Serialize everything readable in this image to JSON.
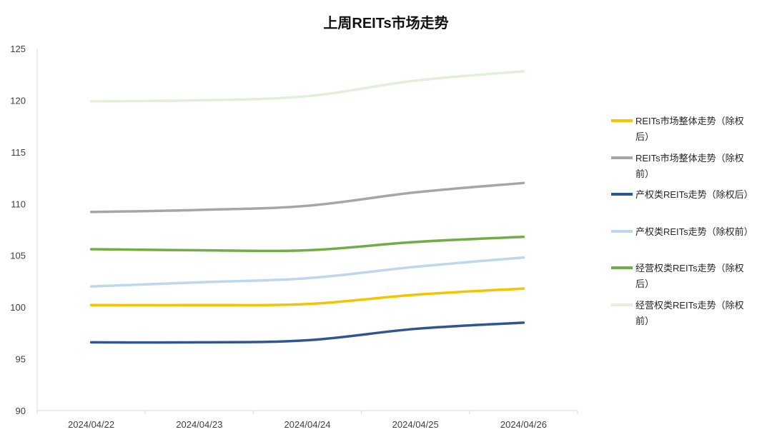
{
  "chart_data": {
    "type": "line",
    "title": "上周REITs市场走势",
    "categories": [
      "2024/04/22",
      "2024/04/23",
      "2024/04/24",
      "2024/04/25",
      "2024/04/26"
    ],
    "ylim": [
      90,
      125
    ],
    "yticks": [
      90,
      95,
      100,
      105,
      110,
      115,
      120,
      125
    ],
    "grid": false,
    "legend_position": "right",
    "series": [
      {
        "name": "REITs市场整体走势（除权\n后）",
        "color": "#F5C400",
        "values": [
          100.2,
          100.2,
          100.3,
          101.2,
          101.8
        ]
      },
      {
        "name": " REITs市场整体走势（除权\n前）",
        "color": "#A6A6A6",
        "values": [
          109.2,
          109.4,
          109.8,
          111.1,
          112.0
        ]
      },
      {
        "name": "产权类REITs走势（除权后）",
        "color": "#2F5597",
        "values": [
          96.6,
          96.6,
          96.8,
          97.9,
          98.5
        ]
      },
      {
        "name": "产权类REITs走势（除权前）",
        "color": "#BDD7EE",
        "values": [
          102.0,
          102.4,
          102.8,
          103.9,
          104.8
        ]
      },
      {
        "name": "经营权类REITs走势（除权\n后）",
        "color": "#70AD47",
        "values": [
          105.6,
          105.5,
          105.5,
          106.3,
          106.8
        ]
      },
      {
        "name": "经营权类REITs走势（除权\n前）",
        "color": "#E2EFDA",
        "values": [
          119.9,
          120.0,
          120.4,
          121.9,
          122.8
        ]
      }
    ]
  }
}
